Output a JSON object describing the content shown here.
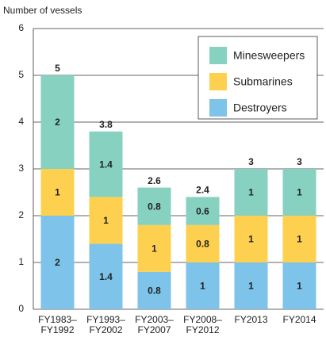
{
  "chart_data": {
    "type": "stacked_bar",
    "y_axis_label": "Number of vessels",
    "categories": [
      "FY1983–FY1992",
      "FY1993–FY2002",
      "FY2003–FY2007",
      "FY2008–FY2012",
      "FY2013",
      "FY2014"
    ],
    "series": [
      {
        "name": "Destroyers",
        "color": "#7dc3ea",
        "values": [
          2,
          1.4,
          0.8,
          1,
          1,
          1
        ]
      },
      {
        "name": "Submarines",
        "color": "#fdd14f",
        "values": [
          1,
          1,
          1,
          0.8,
          1,
          1
        ]
      },
      {
        "name": "Minesweepers",
        "color": "#87d1c1",
        "values": [
          2,
          1.4,
          0.8,
          0.6,
          1,
          1
        ]
      }
    ],
    "totals": [
      5,
      3.8,
      2.6,
      2.4,
      3,
      3
    ],
    "ylim": [
      0,
      6
    ],
    "yticks": [
      0,
      1,
      2,
      3,
      4,
      5,
      6
    ],
    "grid": true,
    "legend": "upper right"
  }
}
